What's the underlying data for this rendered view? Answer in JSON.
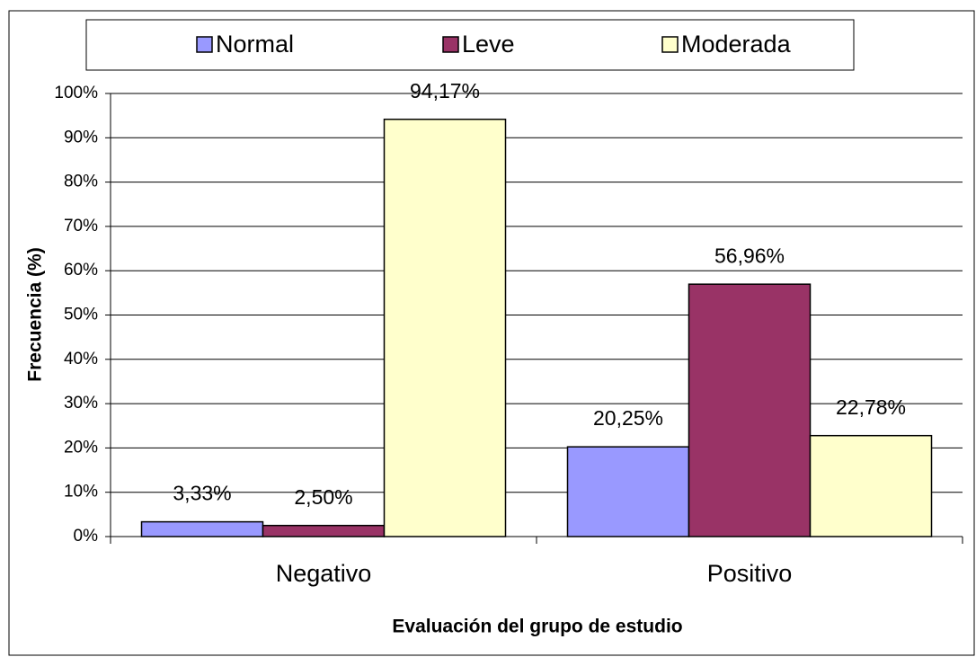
{
  "chart_data": {
    "type": "bar",
    "categories": [
      "Negativo",
      "Positivo"
    ],
    "series": [
      {
        "name": "Normal",
        "color": "#9999ff",
        "values": [
          3.33,
          20.25
        ],
        "value_labels": [
          "3,33%",
          "20,25%"
        ]
      },
      {
        "name": "Leve",
        "color": "#993366",
        "values": [
          2.5,
          56.96
        ],
        "value_labels": [
          "2,50%",
          "56,96%"
        ]
      },
      {
        "name": "Moderada",
        "color": "#ffffcc",
        "values": [
          94.17,
          22.78
        ],
        "value_labels": [
          "94,17%",
          "22,78%"
        ]
      }
    ],
    "ylim": [
      0,
      100
    ],
    "yticks": [
      {
        "value": 0,
        "label": "0%"
      },
      {
        "value": 10,
        "label": "10%"
      },
      {
        "value": 20,
        "label": "20%"
      },
      {
        "value": 30,
        "label": "30%"
      },
      {
        "value": 40,
        "label": "40%"
      },
      {
        "value": 50,
        "label": "50%"
      },
      {
        "value": 60,
        "label": "60%"
      },
      {
        "value": 70,
        "label": "70%"
      },
      {
        "value": 80,
        "label": "80%"
      },
      {
        "value": 90,
        "label": "90%"
      },
      {
        "value": 100,
        "label": "100%"
      }
    ],
    "y_label": "Frecuencia (%)",
    "x_label": "Evaluación del grupo de estudio",
    "grid": true,
    "legend": "top"
  }
}
